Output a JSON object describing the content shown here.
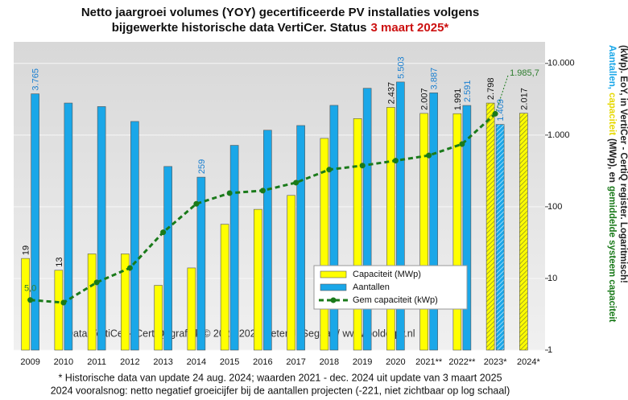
{
  "chart_data": {
    "type": "bar-line",
    "title_lines": [
      [
        "Netto jaargroei volumes (YOY) gecertificeerde PV installaties volgens"
      ],
      [
        "bijgewerkte historische data VertiCer. Status",
        "3 maart 2025*"
      ]
    ],
    "title_colors": [
      "#111111",
      "#cc1111"
    ],
    "categories": [
      "2009",
      "2010",
      "2011",
      "2012",
      "2013",
      "2014",
      "2015",
      "2016",
      "2017",
      "2018",
      "2019",
      "2020",
      "2021**",
      "2022**",
      "2023*",
      "2024*"
    ],
    "hatched": [
      false,
      false,
      false,
      false,
      false,
      false,
      false,
      false,
      false,
      false,
      false,
      false,
      false,
      false,
      true,
      true
    ],
    "series": [
      {
        "name": "Capaciteit (MWp)",
        "color": "#ffff00",
        "kind": "bar",
        "label_color": "#111111",
        "values": [
          19,
          13,
          22,
          22,
          8,
          14,
          57,
          92,
          144,
          900,
          1700,
          2437,
          2007,
          1991,
          2798,
          2017
        ],
        "value_labels": [
          "19",
          "13",
          null,
          null,
          null,
          null,
          null,
          null,
          null,
          null,
          null,
          "2.437",
          "2.007",
          "1.991",
          "2.798",
          "2.017"
        ]
      },
      {
        "name": "Aantallen",
        "color": "#1aa7e8",
        "kind": "bar",
        "label_color": "#1a7fd0",
        "values": [
          3765,
          2800,
          2500,
          1550,
          365,
          259,
          720,
          1170,
          1360,
          2600,
          4500,
          5503,
          3887,
          2591,
          1409,
          null
        ],
        "value_labels": [
          "3.765",
          null,
          null,
          null,
          null,
          "259",
          null,
          null,
          null,
          null,
          null,
          "5.503",
          "3.887",
          "2.591",
          "1.409",
          null
        ]
      },
      {
        "name": "Gem capaciteit (kWp)",
        "color": "#1a7a1a",
        "kind": "line",
        "label_color": "#2e7d2e",
        "values": [
          5.0,
          4.6,
          8.8,
          14,
          44,
          110,
          155,
          168,
          217,
          330,
          375,
          440,
          520,
          750,
          1985.7,
          null
        ],
        "value_labels": [
          "5,0",
          null,
          null,
          null,
          null,
          null,
          null,
          null,
          null,
          null,
          null,
          null,
          null,
          null,
          "1.985,7",
          null
        ]
      }
    ],
    "log_scale": true,
    "ylim": [
      1,
      20000
    ],
    "yticks": [
      1,
      10,
      100,
      {
        "value": 1000,
        "label": "1.000"
      },
      {
        "value": 10000,
        "label": "10.000"
      }
    ],
    "grid": true,
    "legend_position": "center-right",
    "ylabel_lines": [
      [
        {
          "text": "Aantallen,",
          "color": "#1aa7e8"
        },
        {
          "text": "capaciteit",
          "color": "#e6d800"
        },
        {
          "text": "(MWp), en",
          "color": "#222222"
        },
        {
          "text": "gemiddelde systeem capaciteit",
          "color": "#1a7a1a"
        }
      ],
      [
        {
          "text": "(kWp). EoY, in VertiCer - CertiQ register. Logaritmisch!",
          "color": "#222222"
        }
      ]
    ],
    "watermark": "Data VertiCer - CertiQ; grafiek © 2023-2025 Peter J. Segaar / www.polderpv.nl",
    "footnotes": [
      "* Historische data van update 24 aug. 2024; waarden 2021 - dec. 2024 uit update van 3 maart 2025",
      "2024 vooralsnog: netto negatief groeicijfer bij de aantallen projecten (-221, niet zichtbaar op log schaal)"
    ]
  }
}
